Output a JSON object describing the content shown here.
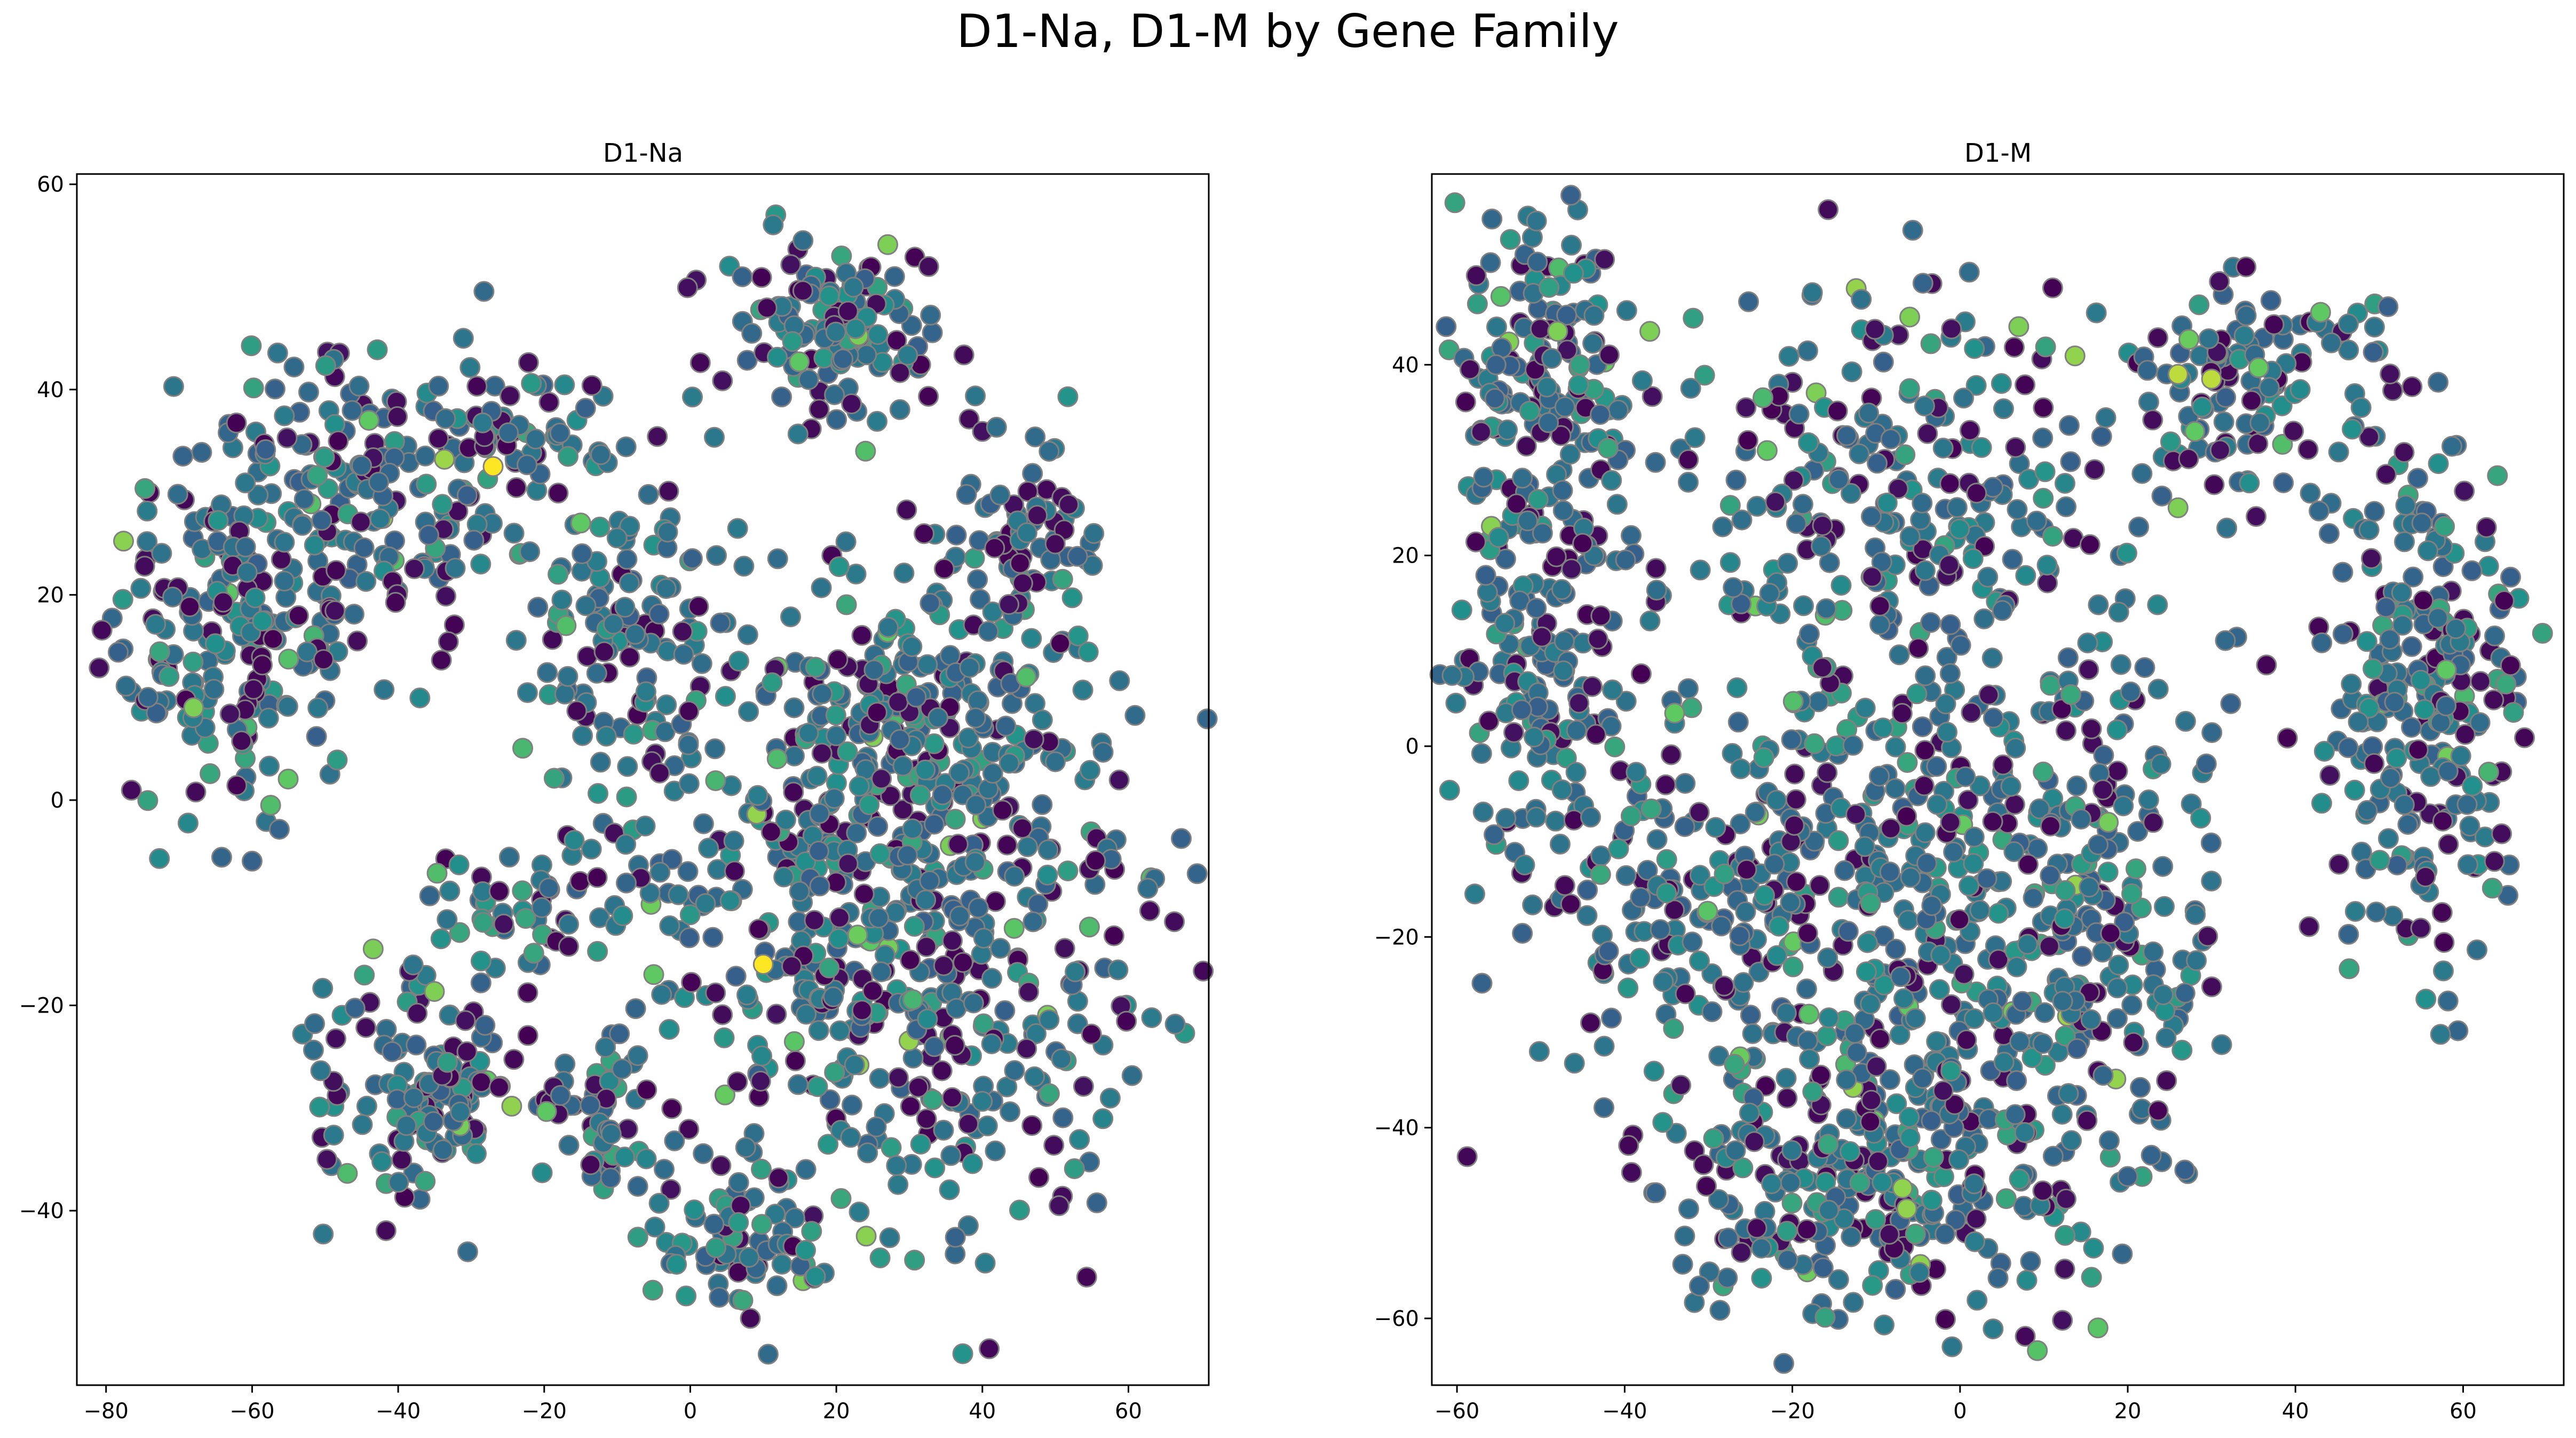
{
  "suptitle": "D1-Na, D1-M by Gene Family",
  "colormap": [
    "#440154",
    "#3b528b",
    "#21918c",
    "#5ec962",
    "#fde725"
  ],
  "marker_edge_color": "#808080",
  "chart_data": [
    {
      "type": "scatter",
      "title": "D1-Na",
      "xlabel": "",
      "ylabel": "",
      "xlim": [
        -84,
        71
      ],
      "ylim": [
        -57,
        61
      ],
      "xticks": [
        -80,
        -60,
        -40,
        -20,
        0,
        20,
        40,
        60
      ],
      "yticks": [
        -40,
        -20,
        0,
        20,
        40,
        60
      ],
      "grid": false,
      "clusters": [
        {
          "cx": -62,
          "cy": 18,
          "sx": 9,
          "sy": 11,
          "n": 230
        },
        {
          "cx": -42,
          "cy": 30,
          "sx": 10,
          "sy": 7,
          "n": 160
        },
        {
          "cx": -22,
          "cy": 36,
          "sx": 6,
          "sy": 3,
          "n": 50
        },
        {
          "cx": 20,
          "cy": 45,
          "sx": 8,
          "sy": 5,
          "n": 140
        },
        {
          "cx": 46,
          "cy": 26,
          "sx": 5,
          "sy": 6,
          "n": 80
        },
        {
          "cx": -8,
          "cy": 15,
          "sx": 7,
          "sy": 9,
          "n": 120
        },
        {
          "cx": -36,
          "cy": -28,
          "sx": 7,
          "sy": 6,
          "n": 150
        },
        {
          "cx": -12,
          "cy": -30,
          "sx": 3,
          "sy": 4,
          "n": 40
        },
        {
          "cx": 28,
          "cy": -12,
          "sx": 18,
          "sy": 14,
          "n": 600
        },
        {
          "cx": 8,
          "cy": -44,
          "sx": 7,
          "sy": 4,
          "n": 70
        },
        {
          "cx": -22,
          "cy": -10,
          "sx": 8,
          "sy": 4,
          "n": 60
        },
        {
          "cx": 30,
          "cy": 8,
          "sx": 12,
          "sy": 7,
          "n": 160
        }
      ],
      "highlights": [
        {
          "x": -27,
          "y": 32.5,
          "c": 1.0
        },
        {
          "x": 10,
          "y": -16,
          "c": 1.0
        },
        {
          "x": -68,
          "y": 9,
          "c": 0.8
        },
        {
          "x": -44,
          "y": 37,
          "c": 0.75
        },
        {
          "x": -15,
          "y": 27,
          "c": 0.75
        },
        {
          "x": -17,
          "y": 17,
          "c": 0.7
        },
        {
          "x": 24,
          "y": 34,
          "c": 0.7
        },
        {
          "x": 46,
          "y": 12,
          "c": 0.7
        },
        {
          "x": -5,
          "y": -17,
          "c": 0.75
        }
      ]
    },
    {
      "type": "scatter",
      "title": "D1-M",
      "xlabel": "",
      "ylabel": "",
      "xlim": [
        -63,
        72
      ],
      "ylim": [
        -67,
        60
      ],
      "xticks": [
        -60,
        -40,
        -20,
        0,
        20,
        40,
        60
      ],
      "yticks": [
        -60,
        -40,
        -20,
        0,
        20,
        40
      ],
      "grid": false,
      "clusters": [
        {
          "cx": -50,
          "cy": 38,
          "sx": 5,
          "sy": 8,
          "n": 160
        },
        {
          "cx": -50,
          "cy": 10,
          "sx": 6,
          "sy": 10,
          "n": 160
        },
        {
          "cx": -5,
          "cy": 25,
          "sx": 15,
          "sy": 12,
          "n": 280
        },
        {
          "cx": 35,
          "cy": 38,
          "sx": 8,
          "sy": 6,
          "n": 120
        },
        {
          "cx": 55,
          "cy": 5,
          "sx": 6,
          "sy": 14,
          "n": 260
        },
        {
          "cx": -15,
          "cy": -15,
          "sx": 18,
          "sy": 14,
          "n": 500
        },
        {
          "cx": -10,
          "cy": -45,
          "sx": 12,
          "sy": 8,
          "n": 300
        },
        {
          "cx": 15,
          "cy": -20,
          "sx": 8,
          "sy": 14,
          "n": 200
        }
      ],
      "highlights": [
        {
          "x": -48,
          "y": 43.5,
          "c": 0.8
        },
        {
          "x": -37,
          "y": 43.5,
          "c": 0.8
        },
        {
          "x": -6,
          "y": 45,
          "c": 0.8
        },
        {
          "x": 7,
          "y": 44,
          "c": 0.8
        },
        {
          "x": 26,
          "y": 39,
          "c": 0.9
        },
        {
          "x": 30,
          "y": 38.5,
          "c": 0.9
        },
        {
          "x": 28,
          "y": 33,
          "c": 0.75
        },
        {
          "x": 26,
          "y": 25,
          "c": 0.8
        },
        {
          "x": -23,
          "y": 31,
          "c": 0.75
        },
        {
          "x": 43,
          "y": 45.5,
          "c": 0.75
        },
        {
          "x": 58,
          "y": 8,
          "c": 0.75
        }
      ]
    }
  ]
}
